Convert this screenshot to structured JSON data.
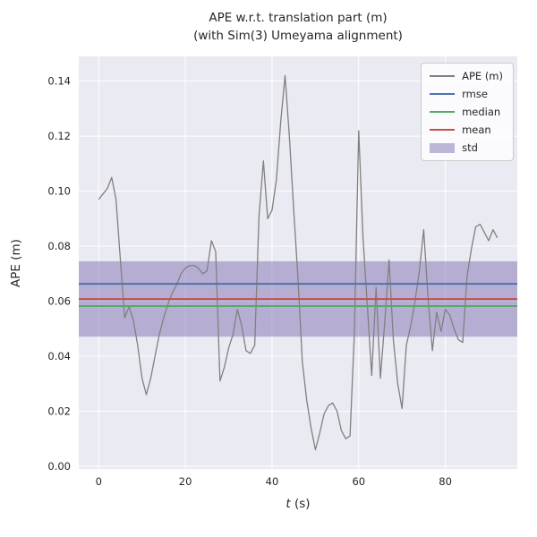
{
  "title": {
    "line1": "APE w.r.t. translation part (m)",
    "line2": "(with Sim(3) Umeyama alignment)"
  },
  "axes": {
    "xlabel_var": "t",
    "xlabel_unit": " (s)",
    "ylabel": "APE (m)",
    "xlim": [
      -4.6,
      96.6
    ],
    "ylim": [
      -0.001,
      0.149
    ],
    "x_ticks": [
      0,
      20,
      40,
      60,
      80
    ],
    "x_tick_labels": [
      "0",
      "20",
      "40",
      "60",
      "80"
    ],
    "y_ticks": [
      0.0,
      0.02,
      0.04,
      0.06,
      0.08,
      0.1,
      0.12,
      0.14
    ],
    "y_tick_labels": [
      "0.00",
      "0.02",
      "0.04",
      "0.06",
      "0.08",
      "0.10",
      "0.12",
      "0.14"
    ],
    "grid": true
  },
  "chart_data": {
    "type": "line",
    "title": "APE w.r.t. translation part (m) (with Sim(3) Umeyama alignment)",
    "xlabel": "t (s)",
    "ylabel": "APE (m)",
    "x": [
      0,
      1,
      2,
      3,
      4,
      5,
      6,
      7,
      8,
      9,
      10,
      11,
      12,
      13,
      14,
      15,
      16,
      17,
      18,
      19,
      20,
      21,
      22,
      23,
      24,
      25,
      26,
      27,
      28,
      29,
      30,
      31,
      32,
      33,
      34,
      35,
      36,
      37,
      38,
      39,
      40,
      41,
      42,
      43,
      44,
      45,
      46,
      47,
      48,
      49,
      50,
      51,
      52,
      53,
      54,
      55,
      56,
      57,
      58,
      59,
      60,
      61,
      62,
      63,
      64,
      65,
      66,
      67,
      68,
      69,
      70,
      71,
      72,
      73,
      74,
      75,
      76,
      77,
      78,
      79,
      80,
      81,
      82,
      83,
      84,
      85,
      86,
      87,
      88,
      89,
      90,
      91,
      92
    ],
    "series": [
      {
        "name": "APE (m)",
        "color": "#808080",
        "values": [
          0.097,
          0.099,
          0.101,
          0.105,
          0.097,
          0.075,
          0.054,
          0.058,
          0.053,
          0.044,
          0.032,
          0.026,
          0.032,
          0.04,
          0.048,
          0.054,
          0.059,
          0.063,
          0.066,
          0.07,
          0.072,
          0.073,
          0.073,
          0.072,
          0.07,
          0.071,
          0.082,
          0.078,
          0.031,
          0.036,
          0.043,
          0.048,
          0.057,
          0.051,
          0.042,
          0.041,
          0.044,
          0.091,
          0.111,
          0.09,
          0.093,
          0.104,
          0.125,
          0.142,
          0.12,
          0.093,
          0.068,
          0.038,
          0.024,
          0.014,
          0.006,
          0.012,
          0.019,
          0.022,
          0.023,
          0.02,
          0.013,
          0.01,
          0.011,
          0.048,
          0.122,
          0.083,
          0.058,
          0.033,
          0.065,
          0.032,
          0.052,
          0.075,
          0.046,
          0.03,
          0.021,
          0.044,
          0.051,
          0.06,
          0.071,
          0.086,
          0.061,
          0.042,
          0.056,
          0.049,
          0.057,
          0.055,
          0.05,
          0.046,
          0.045,
          0.069,
          0.079,
          0.087,
          0.088,
          0.085,
          0.082,
          0.086,
          0.083
        ]
      }
    ],
    "stat_lines": [
      {
        "name": "rmse",
        "color": "#4C72B0",
        "value": 0.0663
      },
      {
        "name": "mean",
        "color": "#C44E52",
        "value": 0.0608
      },
      {
        "name": "median",
        "color": "#55A868",
        "value": 0.0582
      }
    ],
    "std_band": {
      "name": "std",
      "color": "#8172B2",
      "alpha": 0.5,
      "low": 0.0471,
      "high": 0.0745
    }
  },
  "legend": {
    "entries": [
      {
        "label": "APE (m)",
        "type": "line",
        "color": "#808080"
      },
      {
        "label": "rmse",
        "type": "line",
        "color": "#4C72B0"
      },
      {
        "label": "median",
        "type": "line",
        "color": "#55A868"
      },
      {
        "label": "mean",
        "type": "line",
        "color": "#C44E52"
      },
      {
        "label": "std",
        "type": "patch",
        "color": "#8172B2",
        "alpha": 0.5
      }
    ]
  },
  "colors": {
    "figure_bg": "#FFFFFF",
    "plot_bg": "#EAEAF2",
    "grid": "#FFFFFF",
    "text": "#262626",
    "legend_bg": "rgba(255,255,255,0.8)",
    "legend_border": "#CCCCCC"
  }
}
